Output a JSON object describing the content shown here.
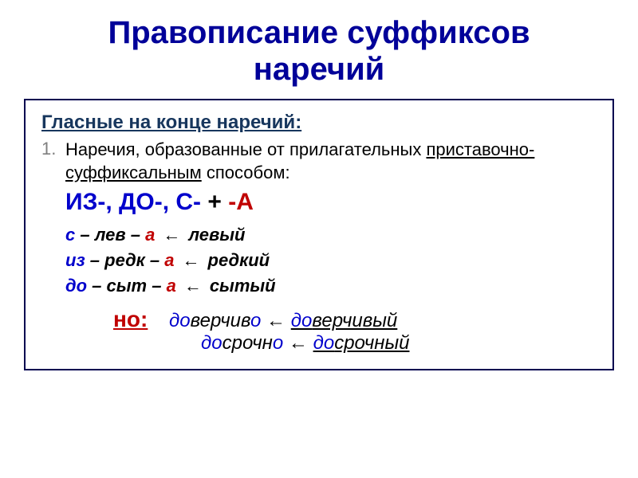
{
  "colors": {
    "title": "#000099",
    "subtitle": "#17365d",
    "body": "#000000",
    "list_num": "#7f7f7f",
    "accent_blue": "#0000cc",
    "accent_red": "#c00000",
    "box_border": "#000050"
  },
  "title_line1": "Правописание суффиксов",
  "title_line2": "наречий",
  "subtitle": "Гласные на конце наречий:",
  "list_number": "1.",
  "intro_plain": "Наречия, образованные от прилагательных ",
  "intro_underlined": "приставочно-суффиксальным",
  "intro_tail": " способом:",
  "rule_prefixes": "ИЗ-, ДО-, С-",
  "rule_plus": "    +    ",
  "rule_suffix": "-А",
  "examples": [
    {
      "pfx": "с",
      "root": " – лев – ",
      "sfx": "а",
      "arrow": "←",
      "src": "левый"
    },
    {
      "pfx": "из",
      "root": " – редк – ",
      "sfx": "а",
      "arrow": "←",
      "src": "редкий"
    },
    {
      "pfx": "до",
      "root": " – сыт – ",
      "sfx": "а",
      "arrow": "←",
      "src": "сытый"
    }
  ],
  "but_label": "но:",
  "but1": {
    "pfx": "до",
    "mid": "верчив",
    "end": "о",
    "arrow": " ← ",
    "src_pfx": "до",
    "src_rest": "верчивый"
  },
  "but2": {
    "pfx": "до",
    "mid": "срочн",
    "end": "о",
    "arrow": " ← ",
    "src_pfx": "до",
    "src_rest": "срочный"
  }
}
